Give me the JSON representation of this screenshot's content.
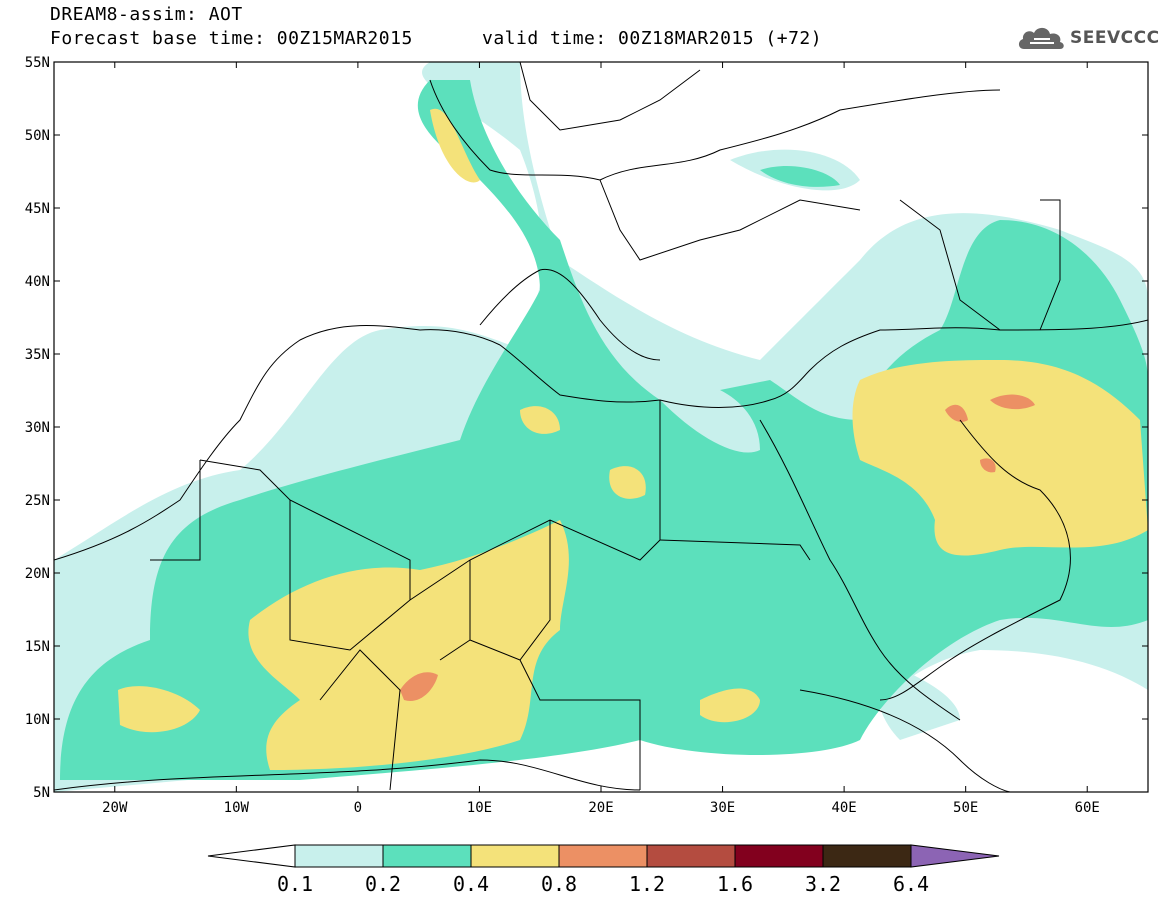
{
  "header": {
    "title": "DREAM8-assim: AOT",
    "base_time": "Forecast base time: 00Z15MAR2015",
    "valid_time": "valid time: 00Z18MAR2015 (+72)",
    "logo_text": "SEEVCCC"
  },
  "map": {
    "lon_range": [
      -25,
      65
    ],
    "lat_range": [
      5,
      55
    ],
    "lat_ticks": [
      "55N",
      "50N",
      "45N",
      "40N",
      "35N",
      "30N",
      "25N",
      "20N",
      "15N",
      "10N",
      "5N"
    ],
    "lon_ticks": [
      "20W",
      "10W",
      "0",
      "10E",
      "20E",
      "30E",
      "40E",
      "50E",
      "60E"
    ],
    "ocean_color": "#ffffff",
    "boundary_color": "#000000"
  },
  "colorbar": {
    "labels": [
      "0.1",
      "0.2",
      "0.4",
      "0.8",
      "1.2",
      "1.6",
      "3.2",
      "6.4"
    ],
    "colors": [
      "#ffffff",
      "#c8f0ec",
      "#5ce0bc",
      "#f4e27a",
      "#ec9064",
      "#b44c40",
      "#82001e",
      "#3c2814",
      "#8c64b4"
    ]
  }
}
